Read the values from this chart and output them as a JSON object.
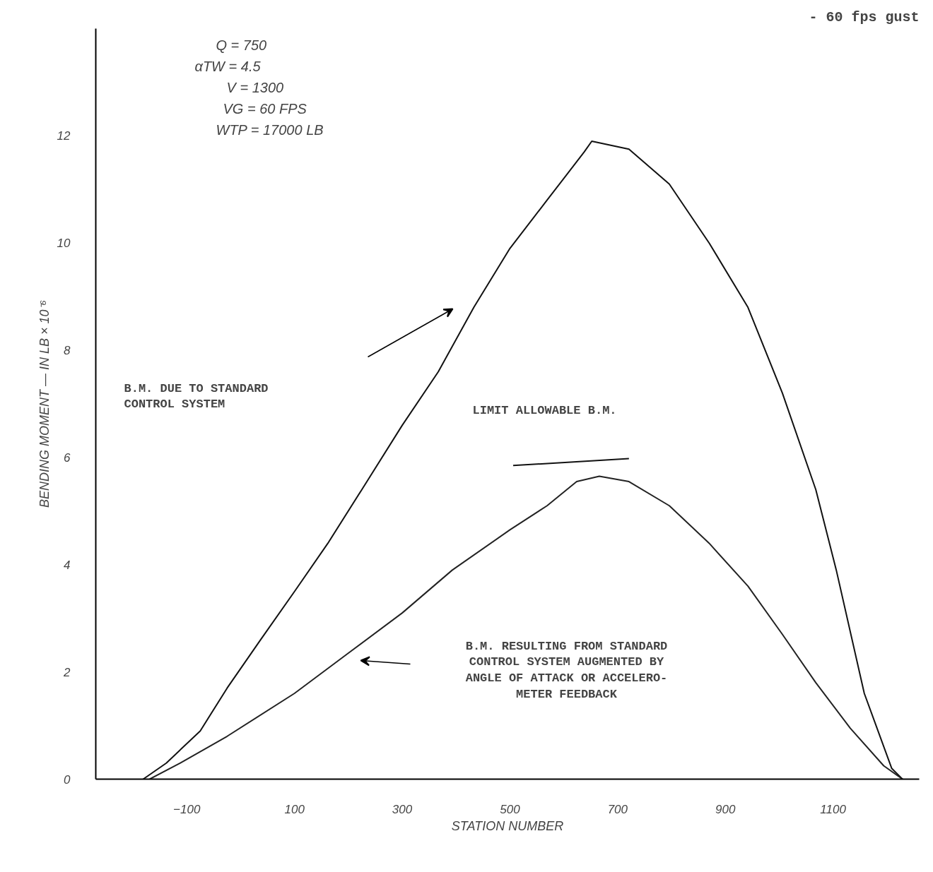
{
  "chart_data": {
    "type": "line",
    "title": "- 60 fps gust",
    "xlabel": "STATION NUMBER",
    "ylabel": "BENDING MOMENT — IN LB × 10⁻⁶",
    "xlim": [
      -269,
      1260
    ],
    "ylim": [
      0,
      14
    ],
    "xticks": [
      -100,
      100,
      300,
      500,
      700,
      900,
      1100
    ],
    "yticks": [
      0,
      2,
      4,
      6,
      8,
      10,
      12
    ],
    "grid": false,
    "marker": "none",
    "line_style": "solid",
    "series": [
      {
        "color": "#111111",
        "x": [
          -181,
          -138,
          -75,
          -25,
          37,
          100,
          162,
          225,
          300,
          367,
          433,
          500,
          569,
          638,
          652,
          721,
          796,
          870,
          942,
          1006,
          1068,
          1106,
          1158,
          1209,
          1229
        ],
        "values": [
          0,
          0.3,
          0.9,
          1.7,
          2.6,
          3.5,
          4.4,
          5.4,
          6.6,
          7.6,
          8.8,
          9.9,
          10.8,
          11.7,
          11.9,
          11.75,
          11.1,
          10.0,
          8.8,
          7.2,
          5.4,
          3.9,
          1.6,
          0.2,
          0
        ]
      },
      {
        "color": "#222222",
        "x": [
          -169,
          -112,
          -25,
          100,
          200,
          300,
          393,
          500,
          569,
          624,
          666,
          721,
          796,
          870,
          942,
          1006,
          1068,
          1132,
          1194,
          1229
        ],
        "values": [
          0,
          0.3,
          0.8,
          1.6,
          2.35,
          3.1,
          3.9,
          4.65,
          5.1,
          5.55,
          5.65,
          5.55,
          5.1,
          4.4,
          3.6,
          2.7,
          1.8,
          0.95,
          0.25,
          0
        ]
      },
      {
        "color": "#111111",
        "x": [
          506,
          721
        ],
        "values": [
          5.85,
          5.98
        ]
      }
    ],
    "annotations": [
      "Q = 750",
      "αTW = 4.5",
      "V = 1300",
      "VG = 60 FPS",
      "WTP = 17000 LB",
      "B.M. DUE TO STANDARD\nCONTROL SYSTEM",
      "LIMIT ALLOWABLE B.M.",
      "B.M. RESULTING FROM STANDARD\nCONTROL SYSTEM AUGMENTED BY\nANGLE OF ATTACK OR ACCELERO-\nMETER FEEDBACK"
    ]
  }
}
